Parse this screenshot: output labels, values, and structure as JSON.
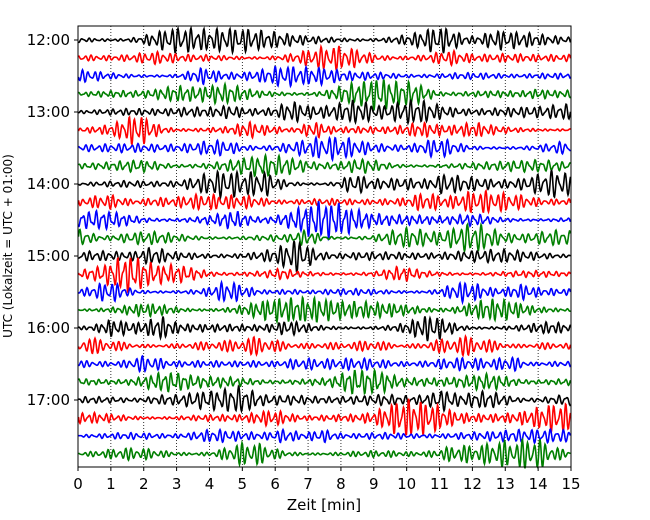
{
  "chart_data": {
    "type": "line",
    "subtype": "helicorder",
    "xlabel": "Zeit  [min]",
    "ylabel": "UTC (Lokalzeit = UTC + 01:00)",
    "xlim": [
      0,
      15
    ],
    "x_ticks": [
      0,
      1,
      2,
      3,
      4,
      5,
      6,
      7,
      8,
      9,
      10,
      11,
      12,
      13,
      14,
      15
    ],
    "y_tick_labels": [
      "12:00",
      "13:00",
      "14:00",
      "15:00",
      "16:00",
      "17:00"
    ],
    "rows_per_hour": 4,
    "row_count": 24,
    "minutes_per_row": 15,
    "trace_colors": [
      "#000000",
      "#ff0000",
      "#0000ff",
      "#007f00"
    ],
    "x_grid": "dotted vertical lines at each minute",
    "series_note": "continuous seismic-style wiggle traces, one per 15-minute row, colors cycling black, red, blue, green"
  }
}
